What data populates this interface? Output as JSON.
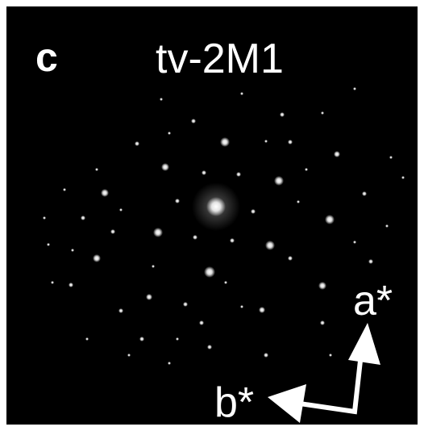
{
  "panel_label": "c",
  "title": "tv-2M1",
  "axes": {
    "a": "a*",
    "b": "b*"
  }
}
